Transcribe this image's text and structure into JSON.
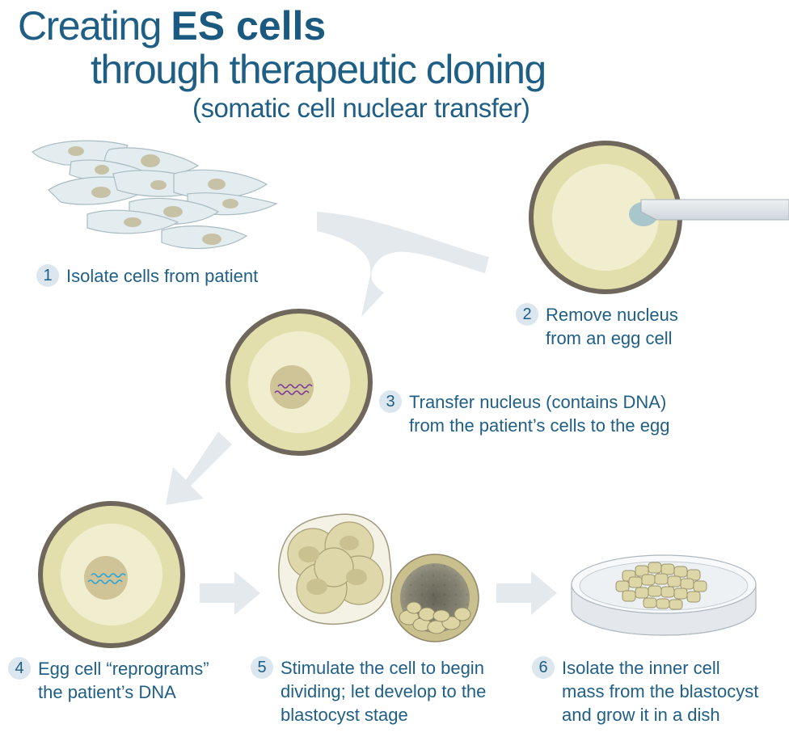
{
  "title": {
    "line1_prefix": "Creating",
    "line1_bold": "ES cells",
    "line2": "through therapeutic cloning",
    "line3": "(somatic cell nuclear transfer)"
  },
  "steps": [
    {
      "number": "1",
      "lines": [
        "Isolate cells from patient"
      ]
    },
    {
      "number": "2",
      "lines": [
        "Remove nucleus",
        "from an egg cell"
      ]
    },
    {
      "number": "3",
      "lines": [
        "Transfer nucleus (contains DNA)",
        "from the patient’s cells to the egg"
      ]
    },
    {
      "number": "4",
      "lines": [
        "Egg cell “reprograms”",
        "the patient’s DNA"
      ]
    },
    {
      "number": "5",
      "lines": [
        "Stimulate the cell to begin",
        "dividing; let develop to the",
        "blastocyst stage"
      ]
    },
    {
      "number": "6",
      "lines": [
        "Isolate the inner cell",
        "mass from the blastocyst",
        "and grow it in a dish"
      ]
    }
  ],
  "colors": {
    "text": "#1f5f86",
    "number_badge": "#dbe6ee",
    "arrow": "#e4e9ee",
    "egg_shell": "#6f675c",
    "egg_outer": "#e3dfac",
    "egg_inner": "#f1eed0",
    "nucleus": "#cfc398",
    "dna_purple": "#7b3a98",
    "dna_blue": "#2aa3d8"
  },
  "icons": [
    "somatic-cells-icon",
    "egg-cell-icon",
    "pipette-icon",
    "dna-strand-icon",
    "morula-icon",
    "blastocyst-icon",
    "petri-dish-icon",
    "arrow-icon"
  ]
}
